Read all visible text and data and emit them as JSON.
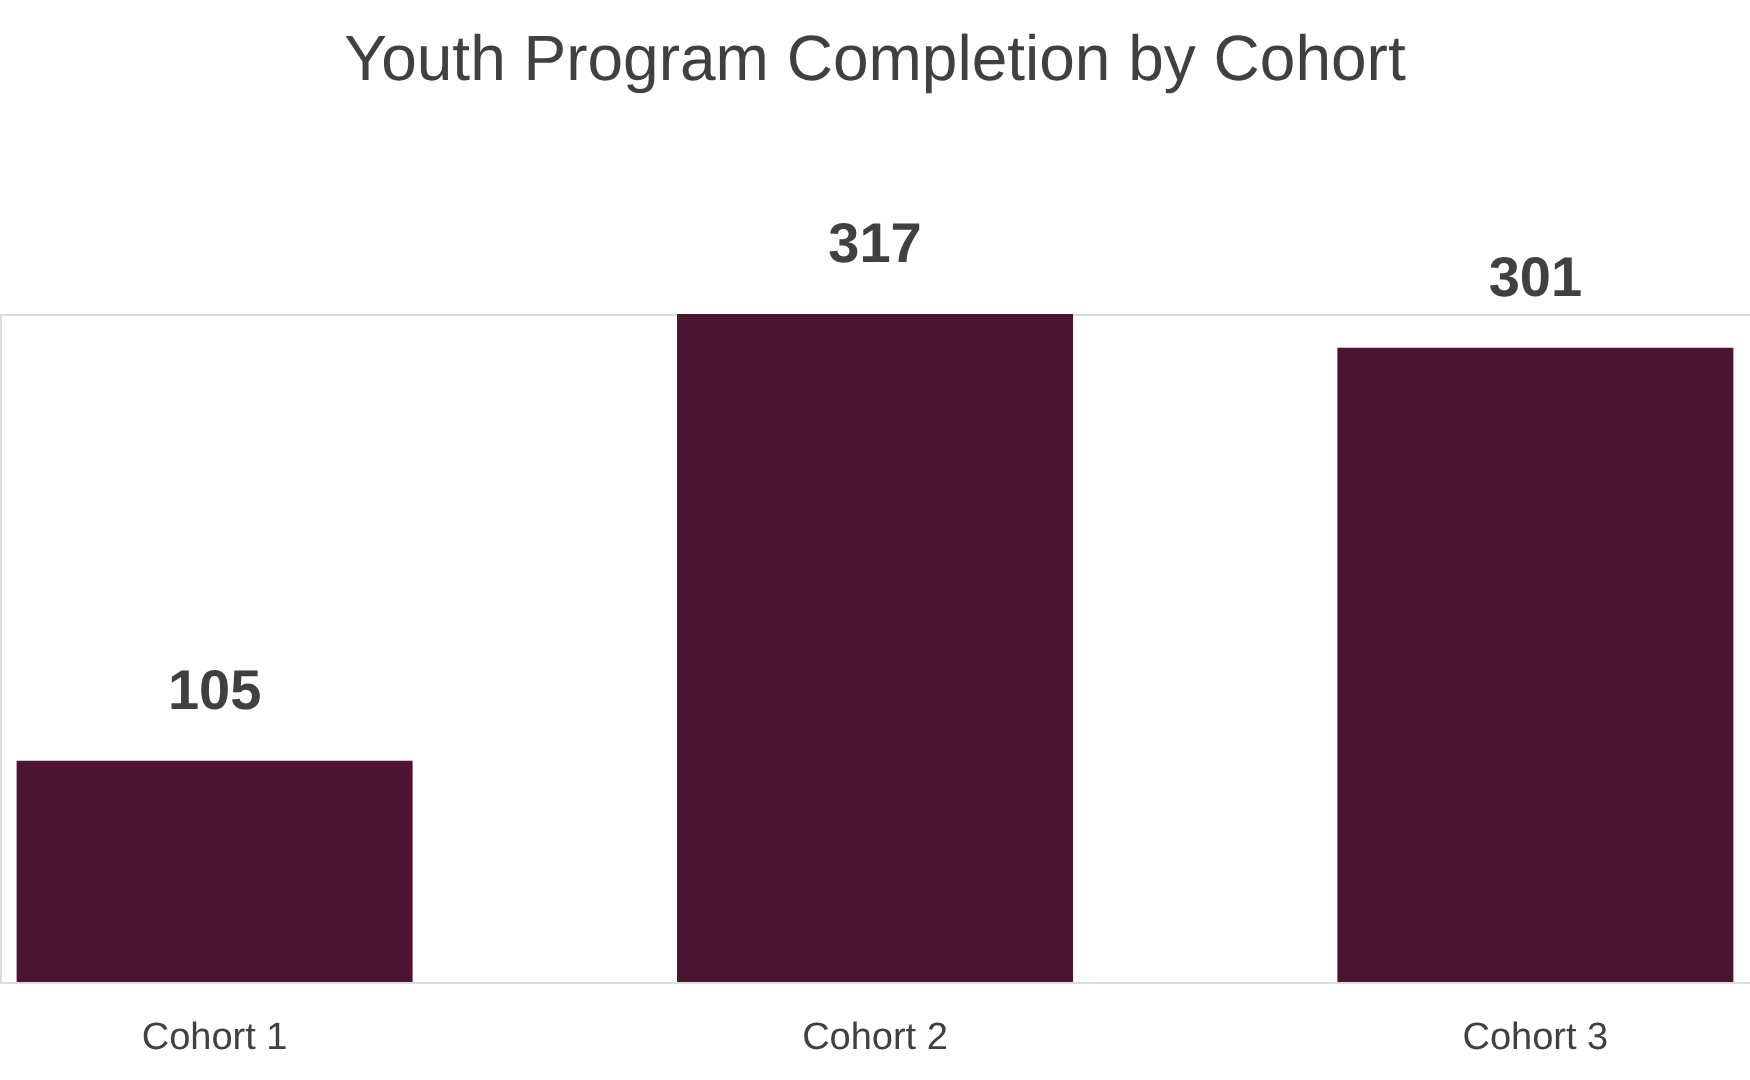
{
  "chart_data": {
    "type": "bar",
    "title": "Youth Program Completion by Cohort",
    "categories": [
      "Cohort 1",
      "Cohort 2",
      "Cohort 3"
    ],
    "values": [
      105,
      317,
      301
    ],
    "color": "#4d1431",
    "data_labels": true
  }
}
